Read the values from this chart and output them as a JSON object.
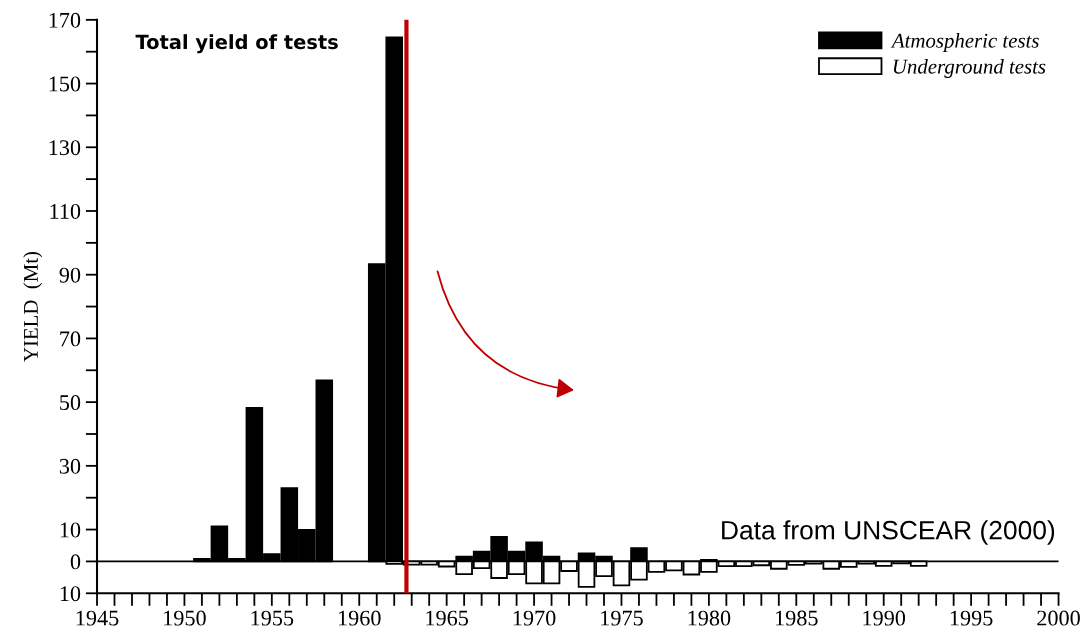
{
  "chart_data": {
    "type": "bar",
    "title": "Total yield of tests",
    "ylabel": "YIELD  (Mt)",
    "series": [
      {
        "name": "Atmospheric tests",
        "color": "#000000",
        "x": [
          1951,
          1952,
          1953,
          1954,
          1955,
          1956,
          1957,
          1958,
          1961,
          1962,
          1966,
          1967,
          1968,
          1969,
          1970,
          1971,
          1973,
          1974,
          1976,
          1980
        ],
        "values": [
          0.8,
          11,
          0.8,
          48.2,
          2.3,
          23,
          9.9,
          56.8,
          93.3,
          164.5,
          1.5,
          3.1,
          7.7,
          3.1,
          6,
          1.5,
          2.5,
          1.5,
          4.2,
          0.5
        ]
      },
      {
        "name": "Underground tests",
        "color": "#ffffff",
        "x": [
          1962,
          1963,
          1964,
          1965,
          1966,
          1967,
          1968,
          1969,
          1970,
          1971,
          1972,
          1973,
          1974,
          1975,
          1976,
          1977,
          1978,
          1979,
          1980,
          1981,
          1982,
          1983,
          1984,
          1985,
          1986,
          1987,
          1988,
          1989,
          1990,
          1991,
          1992
        ],
        "values": [
          -0.8,
          -1.0,
          -1.0,
          -1.6,
          -4,
          -2.1,
          -5.2,
          -4,
          -6.9,
          -6.9,
          -3,
          -8,
          -4.6,
          -7.5,
          -5.7,
          -3.3,
          -2.8,
          -4.1,
          -3.3,
          -1.5,
          -1.5,
          -1.2,
          -2.3,
          -1.1,
          -0.7,
          -2.3,
          -1.7,
          -0.7,
          -1.4,
          -0.6,
          -1.4
        ]
      }
    ],
    "xlim": [
      1945,
      2000
    ],
    "xticks": [
      1945,
      {
        "value": 1946,
        "label": null
      },
      {
        "value": 1947,
        "label": null
      },
      {
        "value": 1948,
        "label": null
      },
      {
        "value": 1949,
        "label": null
      },
      1950,
      {
        "value": 1951,
        "label": null
      },
      {
        "value": 1952,
        "label": null
      },
      {
        "value": 1953,
        "label": null
      },
      {
        "value": 1954,
        "label": null
      },
      1955,
      {
        "value": 1956,
        "label": null
      },
      {
        "value": 1957,
        "label": null
      },
      {
        "value": 1958,
        "label": null
      },
      {
        "value": 1959,
        "label": null
      },
      1960,
      {
        "value": 1961,
        "label": null
      },
      {
        "value": 1962,
        "label": null
      },
      {
        "value": 1963,
        "label": null
      },
      {
        "value": 1964,
        "label": null
      },
      1965,
      {
        "value": 1966,
        "label": null
      },
      {
        "value": 1967,
        "label": null
      },
      {
        "value": 1968,
        "label": null
      },
      {
        "value": 1969,
        "label": null
      },
      1970,
      {
        "value": 1971,
        "label": null
      },
      {
        "value": 1972,
        "label": null
      },
      {
        "value": 1973,
        "label": null
      },
      {
        "value": 1974,
        "label": null
      },
      1975,
      {
        "value": 1976,
        "label": null
      },
      {
        "value": 1977,
        "label": null
      },
      {
        "value": 1978,
        "label": null
      },
      {
        "value": 1979,
        "label": null
      },
      1980,
      {
        "value": 1981,
        "label": null
      },
      {
        "value": 1982,
        "label": null
      },
      {
        "value": 1983,
        "label": null
      },
      {
        "value": 1984,
        "label": null
      },
      1985,
      {
        "value": 1986,
        "label": null
      },
      {
        "value": 1987,
        "label": null
      },
      {
        "value": 1988,
        "label": null
      },
      {
        "value": 1989,
        "label": null
      },
      1990,
      {
        "value": 1991,
        "label": null
      },
      {
        "value": 1992,
        "label": null
      },
      {
        "value": 1993,
        "label": null
      },
      {
        "value": 1994,
        "label": null
      },
      1995,
      {
        "value": 1996,
        "label": null
      },
      {
        "value": 1997,
        "label": null
      },
      {
        "value": 1998,
        "label": null
      },
      {
        "value": 1999,
        "label": null
      },
      2000
    ],
    "ylim": [
      -10,
      170
    ],
    "yticks": [
      {
        "value": -10,
        "label": "10"
      },
      0,
      10,
      {
        "value": 20,
        "label": null
      },
      30,
      {
        "value": 40,
        "label": null
      },
      50,
      {
        "value": 60,
        "label": null
      },
      70,
      {
        "value": 80,
        "label": null
      },
      90,
      {
        "value": 100,
        "label": null
      },
      110,
      {
        "value": 120,
        "label": null
      },
      130,
      {
        "value": 140,
        "label": null
      },
      150,
      {
        "value": 160,
        "label": null
      },
      170
    ],
    "ref_lines": [
      {
        "axis": "y",
        "value": 0,
        "color": "#000000"
      },
      {
        "axis": "x",
        "value": 1962.7,
        "color": "#c00000"
      }
    ],
    "annotations": [
      {
        "text": "Data from UNSCEAR (2000)",
        "x": 2000,
        "y": 0
      }
    ],
    "legend": "top right",
    "grid": false
  }
}
